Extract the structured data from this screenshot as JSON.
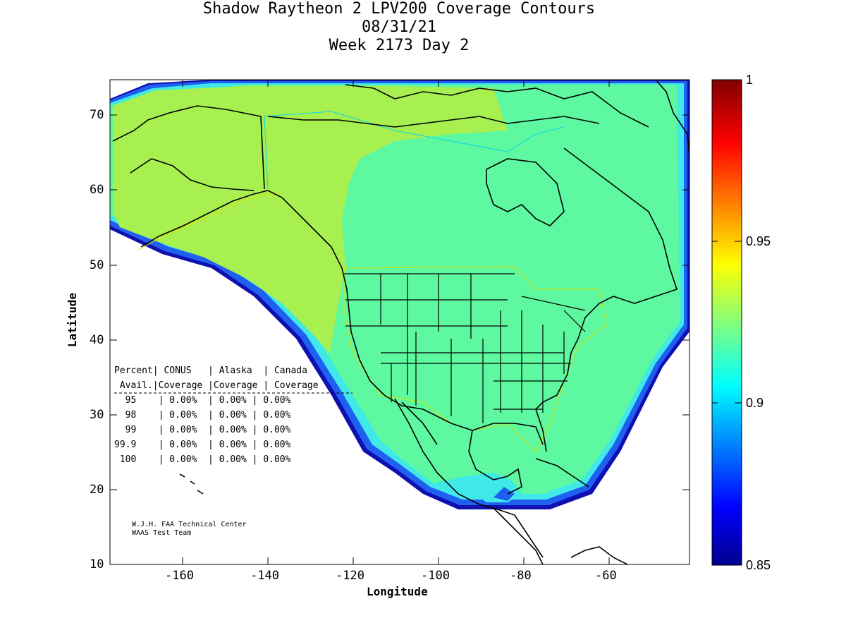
{
  "title": {
    "line1": "Shadow Raytheon 2 LPV200 Coverage Contours",
    "line2": "08/31/21",
    "line3": "Week 2173 Day 2"
  },
  "axes": {
    "xlabel": "Longitude",
    "ylabel": "Latitude",
    "xticks": [
      "-160",
      "-140",
      "-120",
      "-100",
      "-80",
      "-60"
    ],
    "yticks": [
      "70",
      "60",
      "50",
      "40",
      "30",
      "20",
      "10"
    ],
    "xrange": [
      -175,
      -50
    ],
    "yrange": [
      10,
      75
    ]
  },
  "colorbar": {
    "labels": [
      "1",
      "0.95",
      "0.9",
      "0.85"
    ],
    "range": [
      0.85,
      1.0
    ],
    "colormap": "jet"
  },
  "colors": {
    "coverage_main": "#5ef8a0",
    "coverage_alaska": "#a8f050",
    "coverage_edge_cyan": "#40e8e8",
    "coverage_edge_blue": "#2060f0",
    "coverage_edge_dark": "#1010b0",
    "boundary_yellow": "#e0e000",
    "boundary_cyan": "#00d8f0"
  },
  "table": {
    "header1": "Percent| CONUS   | Alaska  | Canada",
    "header2": " Avail.|Coverage |Coverage | Coverage",
    "rows": [
      "  95    | 0.00%  | 0.00% | 0.00%",
      "  98    | 0.00%  | 0.00% | 0.00%",
      "  99    | 0.00%  | 0.00% | 0.00%",
      "99.9    | 0.00%  | 0.00% | 0.00%",
      " 100    | 0.00%  | 0.00% | 0.00%"
    ]
  },
  "credit": {
    "line1": "W.J.H. FAA Technical Center",
    "line2": "WAAS Test Team"
  }
}
